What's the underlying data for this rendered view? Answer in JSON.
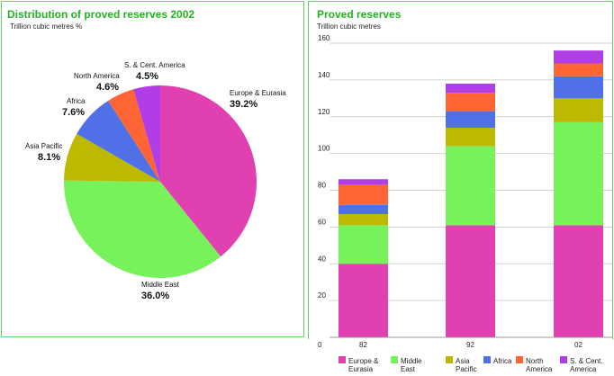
{
  "left_panel": {
    "title": "Distribution of proved reserves 2002",
    "subtitle": "Trillion cubic metres %"
  },
  "right_panel": {
    "title": "Proved reserves",
    "subtitle": "Trillion cubic metres"
  },
  "colors": {
    "europe_eurasia": "#e040b0",
    "middle_east": "#77f25a",
    "asia_pacific": "#bdb800",
    "africa": "#4f70e6",
    "north_america": "#ff6534",
    "s_cent_america": "#b03de6",
    "panel_border": "#5fd35f",
    "title": "#22b422"
  },
  "chart_data": [
    {
      "type": "pie",
      "title": "Distribution of proved reserves 2002",
      "subtitle": "Trillion cubic metres %",
      "slices": [
        {
          "label": "Europe & Eurasia",
          "value": 39.2,
          "display": "39.2%",
          "color": "#e040b0"
        },
        {
          "label": "Middle East",
          "value": 36.0,
          "display": "36.0%",
          "color": "#77f25a"
        },
        {
          "label": "Asia Pacific",
          "value": 8.1,
          "display": "8.1%",
          "color": "#bdb800"
        },
        {
          "label": "Africa",
          "value": 7.6,
          "display": "7.6%",
          "color": "#4f70e6"
        },
        {
          "label": "North America",
          "value": 4.6,
          "display": "4.6%",
          "color": "#ff6534"
        },
        {
          "label": "S. & Cent. America",
          "value": 4.5,
          "display": "4.5%",
          "color": "#b03de6"
        }
      ]
    },
    {
      "type": "bar",
      "stacked": true,
      "title": "Proved reserves",
      "subtitle": "Trillion cubic metres",
      "categories": [
        "82",
        "92",
        "02"
      ],
      "y_ticks": [
        "0",
        "20",
        "40",
        "60",
        "80",
        "100",
        "120",
        "140",
        "160"
      ],
      "ylim": [
        0,
        160
      ],
      "grid": true,
      "legend_position": "bottom",
      "series": [
        {
          "name": "Europe & Eurasia",
          "legend": [
            "Europe &",
            "Eurasia"
          ],
          "color": "#e040b0",
          "values": [
            40,
            61,
            61
          ]
        },
        {
          "name": "Middle East",
          "legend": [
            "Middle",
            "East"
          ],
          "color": "#77f25a",
          "values": [
            21,
            43,
            56
          ]
        },
        {
          "name": "Asia Pacific",
          "legend": [
            "Asia",
            "Pacific"
          ],
          "color": "#bdb800",
          "values": [
            6,
            10,
            13
          ]
        },
        {
          "name": "Africa",
          "legend": [
            "Africa"
          ],
          "color": "#4f70e6",
          "values": [
            5,
            9,
            12
          ]
        },
        {
          "name": "North America",
          "legend": [
            "North",
            "America"
          ],
          "color": "#ff6534",
          "values": [
            11,
            10,
            7
          ]
        },
        {
          "name": "S. & Cent. America",
          "legend": [
            "S. & Cent.",
            "America"
          ],
          "color": "#b03de6",
          "values": [
            3,
            5,
            7
          ]
        }
      ]
    }
  ]
}
